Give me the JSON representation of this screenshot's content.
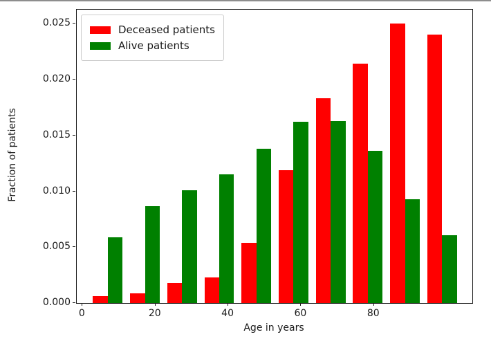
{
  "figure": {
    "background": "#ffffff",
    "text_color": "#1a1a1a",
    "spine_color": "#1c1c1c"
  },
  "chart_data": {
    "type": "bar",
    "subtype": "paired-histogram",
    "title": "",
    "xlabel": "Age in years",
    "ylabel": "Fraction of patients",
    "xlim": [
      -1.6,
      107.0
    ],
    "ylim": [
      0,
      0.02625
    ],
    "grid": false,
    "legend_position": "upper left",
    "x_ticks": [
      0,
      20,
      40,
      60,
      80
    ],
    "x_tick_labels": [
      "0",
      "20",
      "40",
      "60",
      "80"
    ],
    "y_ticks": [
      0.0,
      0.005,
      0.01,
      0.015,
      0.02,
      0.025
    ],
    "y_tick_labels": [
      "0.000",
      "0.005",
      "0.010",
      "0.015",
      "0.020",
      "0.025"
    ],
    "bin_edges": [
      1.8,
      12.0,
      22.2,
      32.4,
      42.6,
      52.8,
      63.0,
      73.2,
      83.4,
      93.6,
      103.8
    ],
    "bin_centers": [
      6.9,
      17.1,
      27.3,
      37.5,
      47.7,
      57.9,
      68.1,
      78.3,
      88.5,
      98.7
    ],
    "bar_fill_fraction": 0.8,
    "series": [
      {
        "name": "Deceased patients",
        "color": "#ff0000",
        "values": [
          0.0006,
          0.0009,
          0.0018,
          0.0023,
          0.0054,
          0.0119,
          0.0183,
          0.0214,
          0.025,
          0.024
        ]
      },
      {
        "name": "Alive patients",
        "color": "#008000",
        "values": [
          0.0059,
          0.0087,
          0.0101,
          0.0115,
          0.0138,
          0.0162,
          0.0163,
          0.0136,
          0.0093,
          0.0061
        ]
      }
    ]
  }
}
